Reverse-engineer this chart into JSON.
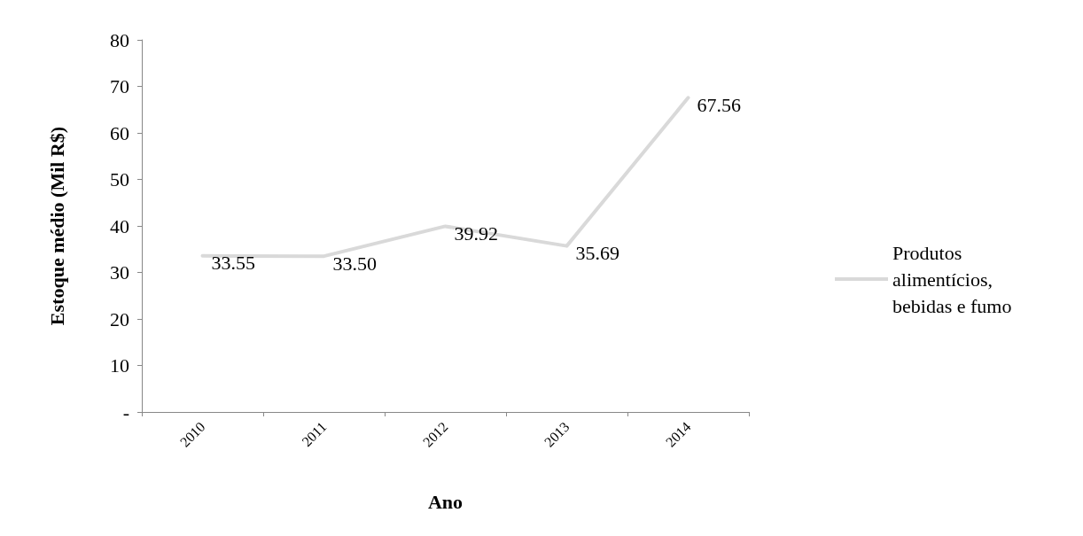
{
  "chart_data": {
    "type": "line",
    "xlabel": "Ano",
    "ylabel": "Estoque médio (Mil R$)",
    "categories": [
      "2010",
      "2011",
      "2012",
      "2013",
      "2014"
    ],
    "series": [
      {
        "name": "Produtos alimentícios, bebidas e fumo",
        "color": "#d9d9d9",
        "values": [
          33.55,
          33.5,
          39.92,
          35.69,
          67.56
        ],
        "value_labels": [
          "33.55",
          "33.50",
          "39.92",
          "35.69",
          "67.56"
        ]
      }
    ],
    "ylim": [
      0,
      80
    ],
    "yticks": [
      {
        "value": 0,
        "label": "-"
      },
      10,
      20,
      30,
      40,
      50,
      60,
      70,
      80
    ],
    "grid": false,
    "legend": "right",
    "marker": "none",
    "line_style": "solid"
  }
}
